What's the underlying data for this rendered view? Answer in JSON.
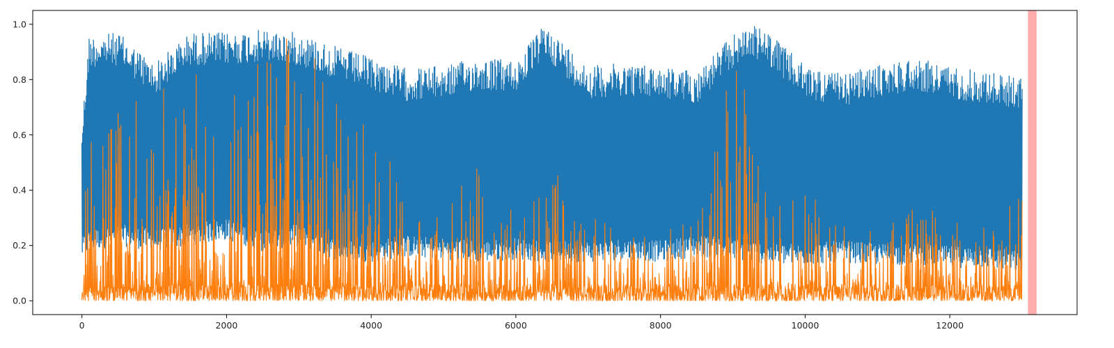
{
  "chart_data": {
    "type": "line",
    "title": "",
    "xlabel": "",
    "ylabel": "",
    "xlim": [
      -680,
      13760
    ],
    "ylim": [
      -0.05,
      1.05
    ],
    "x_ticks": [
      0,
      2000,
      4000,
      6000,
      8000,
      10000,
      12000
    ],
    "x_tick_labels": [
      "0",
      "2000",
      "4000",
      "6000",
      "8000",
      "10000",
      "12000"
    ],
    "y_ticks": [
      0.0,
      0.2,
      0.4,
      0.6,
      0.8,
      1.0
    ],
    "y_tick_labels": [
      "0.0",
      "0.2",
      "0.4",
      "0.6",
      "0.8",
      "1.0"
    ],
    "grid": false,
    "legend": "none",
    "num_points": 13000,
    "highlight_region": {
      "x_start": 13080,
      "x_end": 13200,
      "color": "#ff9999"
    },
    "series": [
      {
        "color": "#1f77b4",
        "x": [
          0,
          100,
          500,
          1000,
          1500,
          2000,
          2500,
          3000,
          3500,
          4000,
          4500,
          5000,
          5500,
          6000,
          6400,
          7000,
          7500,
          8000,
          8500,
          9000,
          9250,
          9500,
          10000,
          10500,
          11000,
          11500,
          12000,
          12500,
          13000
        ],
        "upper_envelope": [
          0.65,
          0.96,
          0.97,
          0.86,
          0.97,
          0.97,
          0.98,
          0.97,
          0.92,
          0.88,
          0.84,
          0.85,
          0.88,
          0.87,
          1.0,
          0.85,
          0.86,
          0.85,
          0.83,
          0.96,
          1.0,
          0.97,
          0.85,
          0.82,
          0.85,
          0.88,
          0.85,
          0.83,
          0.81
        ],
        "lower_envelope": [
          0.15,
          0.18,
          0.2,
          0.18,
          0.2,
          0.22,
          0.18,
          0.2,
          0.15,
          0.14,
          0.16,
          0.15,
          0.14,
          0.15,
          0.14,
          0.14,
          0.15,
          0.14,
          0.16,
          0.15,
          0.14,
          0.13,
          0.13,
          0.14,
          0.13,
          0.13,
          0.12,
          0.12,
          0.1
        ]
      },
      {
        "color": "#ff7f0e",
        "x": [
          0,
          100,
          500,
          1000,
          1500,
          2000,
          2500,
          2700,
          3000,
          3500,
          3900,
          4500,
          5000,
          5600,
          6000,
          6500,
          7000,
          7500,
          8000,
          8500,
          9000,
          9250,
          9500,
          10000,
          10500,
          11000,
          11500,
          12000,
          12500,
          13000
        ],
        "upper_envelope": [
          0.15,
          0.76,
          0.7,
          0.84,
          0.82,
          0.86,
          0.99,
          1.0,
          0.98,
          0.78,
          0.75,
          0.35,
          0.3,
          0.58,
          0.32,
          0.5,
          0.3,
          0.28,
          0.26,
          0.3,
          0.92,
          0.68,
          0.35,
          0.4,
          0.3,
          0.25,
          0.38,
          0.3,
          0.28,
          0.4
        ],
        "lower_envelope": [
          0.0,
          0.0,
          0.0,
          0.0,
          0.0,
          0.0,
          0.0,
          0.0,
          0.0,
          0.0,
          0.0,
          0.0,
          0.0,
          0.0,
          0.0,
          0.0,
          0.0,
          0.0,
          0.0,
          0.0,
          0.0,
          0.0,
          0.0,
          0.0,
          0.0,
          0.0,
          0.0,
          0.0,
          0.0,
          0.0
        ]
      }
    ]
  }
}
